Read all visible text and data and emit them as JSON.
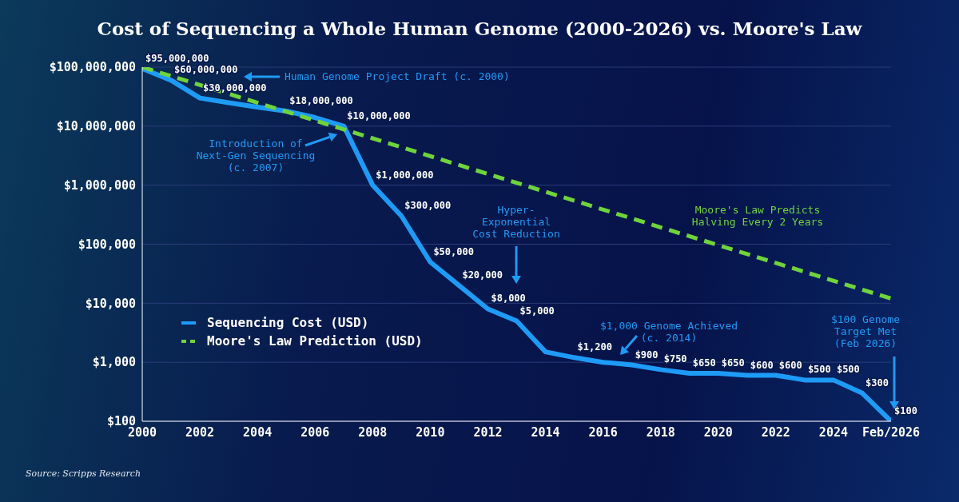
{
  "chart_data": {
    "type": "line",
    "title": "Cost of Sequencing a Whole Human Genome (2000-2026) vs. Moore's Law",
    "x": [
      2000,
      2001,
      2002,
      2003,
      2004,
      2005,
      2006,
      2007,
      2008,
      2009,
      2010,
      2011,
      2012,
      2013,
      2014,
      2015,
      2016,
      2017,
      2018,
      2019,
      2020,
      2021,
      2022,
      2023,
      2024,
      2025,
      2026
    ],
    "series": [
      {
        "name": "Sequencing Cost (USD)",
        "color": "#1e9bf7",
        "line_style": "solid",
        "values": [
          95000000,
          60000000,
          30000000,
          25000000,
          21000000,
          18000000,
          14000000,
          10000000,
          1000000,
          300000,
          50000,
          20000,
          8000,
          5000,
          1500,
          1200,
          1000,
          900,
          750,
          650,
          650,
          600,
          600,
          500,
          500,
          300,
          100
        ],
        "value_labels": [
          "$95,000,000",
          "$60,000,000",
          "$30,000,000",
          null,
          null,
          "$18,000,000",
          null,
          "$10,000,000",
          "$1,000,000",
          "$300,000",
          "$50,000",
          "$20,000",
          "$8,000",
          "$5,000",
          null,
          "$1,200",
          null,
          "$900",
          "$750",
          "$650",
          "$650",
          "$600",
          "$600",
          "$500",
          "$500",
          "$300",
          "$100"
        ]
      },
      {
        "name": "Moore's Law Prediction (USD)",
        "color": "#6fd43c",
        "line_style": "dashed",
        "x": [
          2000,
          2026
        ],
        "values": [
          100000000,
          12000
        ]
      }
    ],
    "xlim": [
      2000,
      2026
    ],
    "xticks": [
      2000,
      2002,
      2004,
      2006,
      2008,
      2010,
      2012,
      2014,
      2016,
      2018,
      2020,
      2022,
      2024,
      {
        "value": 2026,
        "label": "Feb/2026"
      }
    ],
    "ylim": [
      100,
      100000000
    ],
    "yticks": [
      {
        "value": 100,
        "label": "$100"
      },
      {
        "value": 1000,
        "label": "$1,000"
      },
      {
        "value": 10000,
        "label": "$10,000"
      },
      {
        "value": 100000,
        "label": "$100,000"
      },
      {
        "value": 1000000,
        "label": "$1,000,000"
      },
      {
        "value": 10000000,
        "label": "$10,000,000"
      },
      {
        "value": 100000000,
        "label": "$100,000,000"
      }
    ],
    "log": "y",
    "grid": "y",
    "legend": "bottom left",
    "marker": "none",
    "annotations": [
      "Human Genome Project Draft (c. 2000)",
      "Introduction of\nNext-Gen Sequencing\n(c. 2007)",
      "Hyper-\nExponential\nCost Reduction",
      "Moore's Law Predicts\nHalving Every 2 Years",
      "$1,000 Genome Achieved\n(c. 2014)",
      "$100 Genome\nTarget Met\n(Feb 2026)",
      "Source: Scripps Research"
    ]
  }
}
